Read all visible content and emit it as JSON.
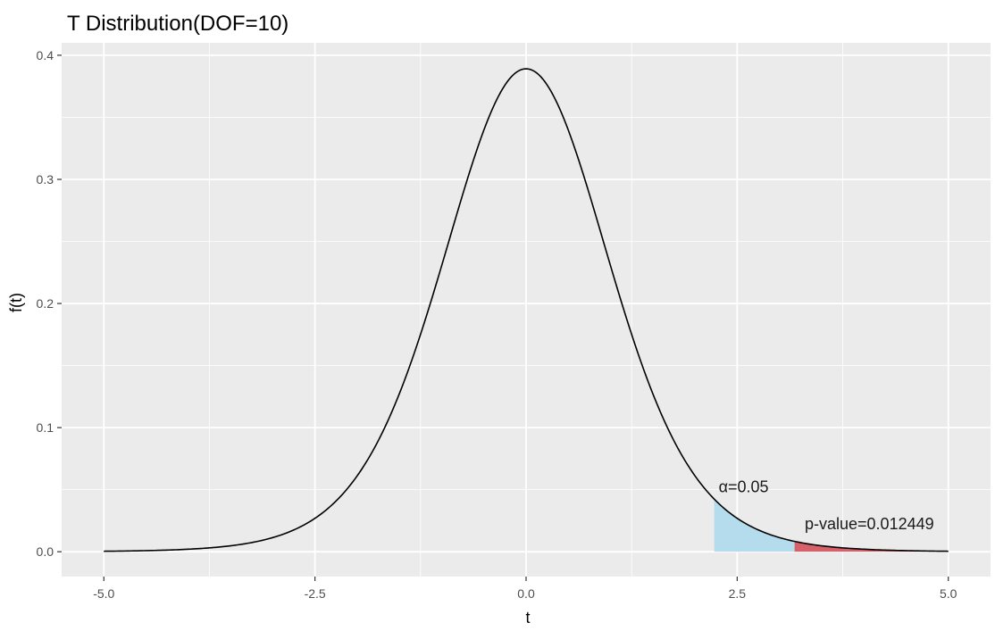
{
  "chart_data": {
    "type": "area",
    "title": "T Distribution(DOF=10)",
    "xlabel": "t",
    "ylabel": "f(t)",
    "xlim": [
      -5.5,
      5.5
    ],
    "ylim": [
      -0.02,
      0.41
    ],
    "x_ticks": [
      -5,
      -2.5,
      0,
      2.5,
      5
    ],
    "x_tick_labels": [
      "-5.0",
      "-2.5",
      "0.0",
      "2.5",
      "5.0"
    ],
    "y_ticks": [
      0,
      0.1,
      0.2,
      0.3,
      0.4
    ],
    "y_tick_labels": [
      "0.0",
      "0.1",
      "0.2",
      "0.3",
      "0.4"
    ],
    "grid": true,
    "background_color": "#ebebeb",
    "grid_color": "#ffffff",
    "series": [
      {
        "dof": 10,
        "x_range": [
          -5,
          5
        ],
        "color": "#000000"
      }
    ],
    "shaded_regions": [
      {
        "label": "α=0.05",
        "x_from": 2.228,
        "x_to": 5,
        "color": "#b4dcec",
        "label_at": [
          2.28,
          0.048
        ]
      },
      {
        "label": "p-value=0.012449",
        "x_from": 3.18,
        "x_to": 4.7,
        "color": "#d6616b",
        "label_at": [
          3.3,
          0.018
        ]
      }
    ]
  }
}
